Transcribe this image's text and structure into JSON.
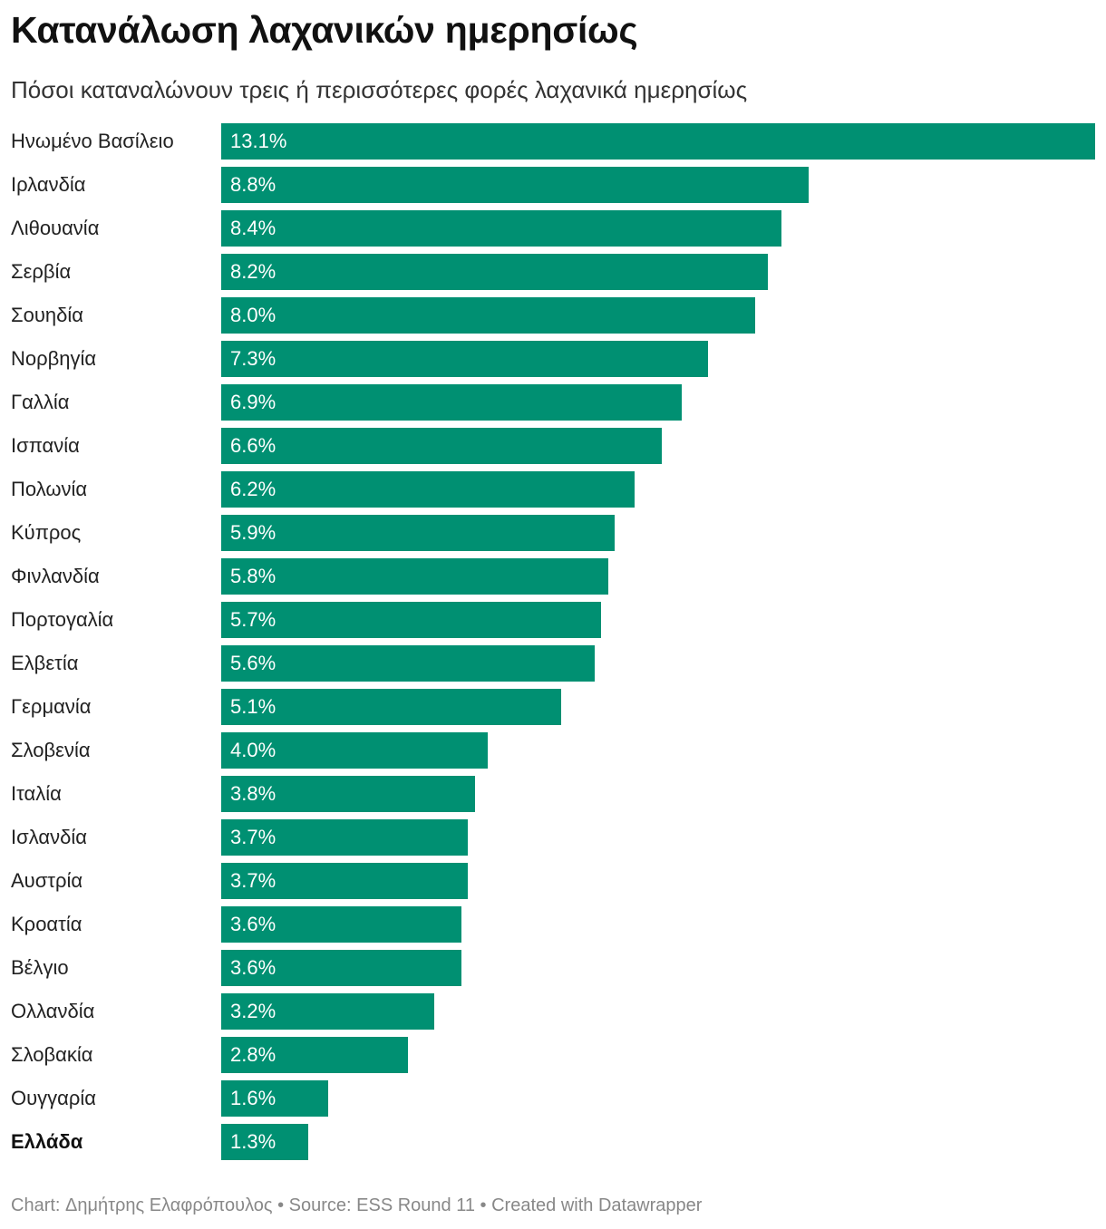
{
  "header": {
    "title": "Κατανάλωση λαχανικών ημερησίως",
    "subtitle": "Πόσοι καταναλώνουν τρεις ή περισσότερες φορές λαχανικά ημερησίως"
  },
  "footer": {
    "credit": "Chart: Δημήτρης Ελαφρόπουλος • Source: ESS Round 11 • Created with Datawrapper"
  },
  "colors": {
    "bar": "#009072",
    "value_text": "#ffffff"
  },
  "chart_data": {
    "type": "bar",
    "orientation": "horizontal",
    "title": "Κατανάλωση λαχανικών ημερησίως",
    "subtitle": "Πόσοι καταναλώνουν τρεις ή περισσότερες φορές λαχανικά ημερησίως",
    "xlabel": "",
    "ylabel": "",
    "xlim": [
      0,
      13.1
    ],
    "unit": "%",
    "highlight": "Ελλάδα",
    "categories": [
      "Ηνωμένο Βασίλειο",
      "Ιρλανδία",
      "Λιθουανία",
      "Σερβία",
      "Σουηδία",
      "Νορβηγία",
      "Γαλλία",
      "Ισπανία",
      "Πολωνία",
      "Κύπρος",
      "Φινλανδία",
      "Πορτογαλία",
      "Ελβετία",
      "Γερμανία",
      "Σλοβενία",
      "Ιταλία",
      "Ισλανδία",
      "Αυστρία",
      "Κροατία",
      "Βέλγιο",
      "Ολλανδία",
      "Σλοβακία",
      "Ουγγαρία",
      "Ελλάδα"
    ],
    "values": [
      13.1,
      8.8,
      8.4,
      8.2,
      8.0,
      7.3,
      6.9,
      6.6,
      6.2,
      5.9,
      5.8,
      5.7,
      5.6,
      5.1,
      4.0,
      3.8,
      3.7,
      3.7,
      3.6,
      3.6,
      3.2,
      2.8,
      1.6,
      1.3
    ],
    "value_labels": [
      "13.1%",
      "8.8%",
      "8.4%",
      "8.2%",
      "8.0%",
      "7.3%",
      "6.9%",
      "6.6%",
      "6.2%",
      "5.9%",
      "5.8%",
      "5.7%",
      "5.6%",
      "5.1%",
      "4.0%",
      "3.8%",
      "3.7%",
      "3.7%",
      "3.6%",
      "3.6%",
      "3.2%",
      "2.8%",
      "1.6%",
      "1.3%"
    ]
  }
}
